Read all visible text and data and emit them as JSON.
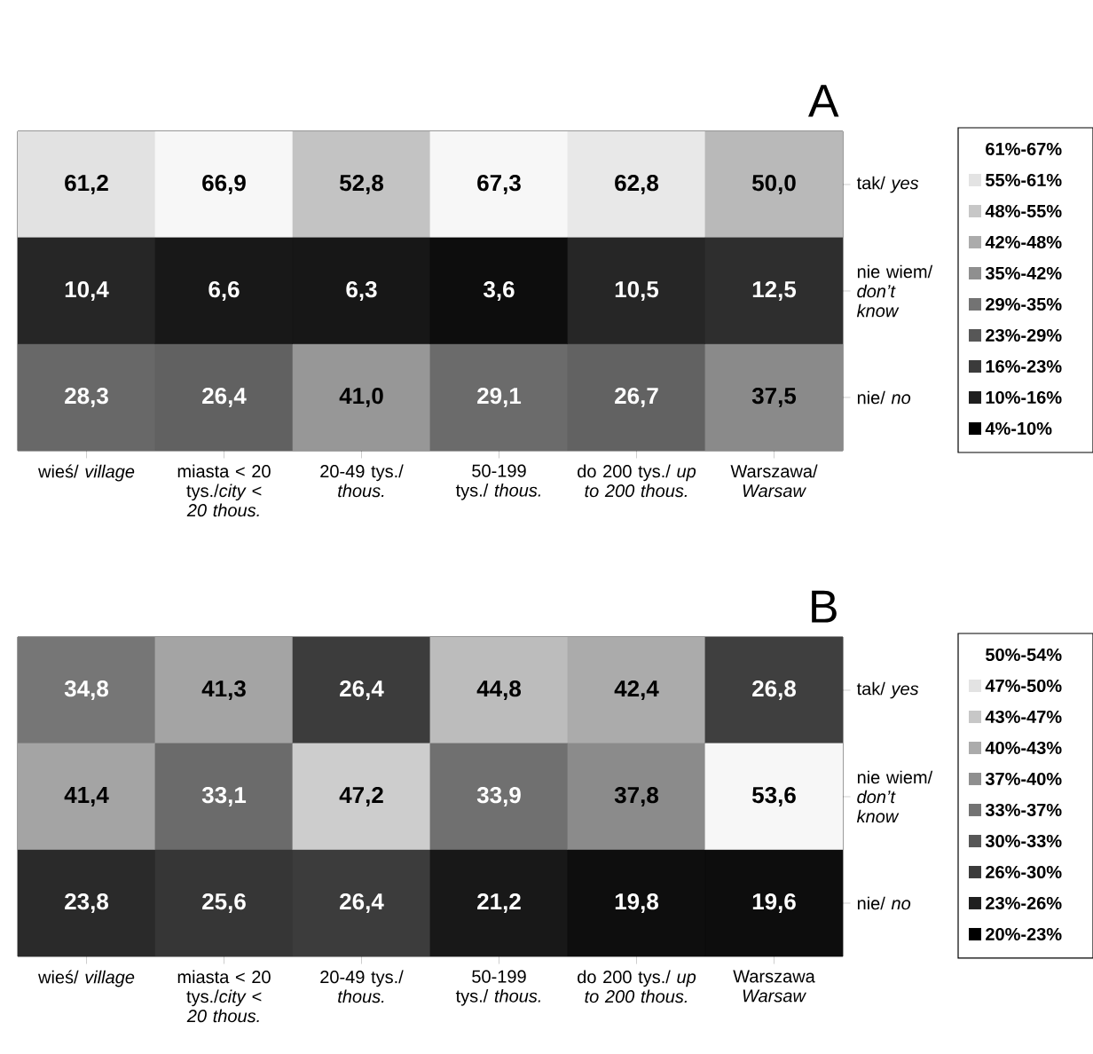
{
  "chart_data": [
    {
      "type": "heatmap",
      "title": "A",
      "categories": [
        "wieś/ *village*",
        "miasta < 20 tys./*city < 20 thous.*",
        "20-49 tys./ *thous.*",
        "50-199 tys./ *thous.*",
        "do 200 tys./ *up to 200 thous.*",
        "Warszawa/ *Warsaw*"
      ],
      "y_categories": [
        "tak/ *yes*",
        "nie wiem/ *don’t know*",
        "nie/ *no*"
      ],
      "cells": [
        [
          61.2,
          66.9,
          52.8,
          67.3,
          62.8,
          50.0
        ],
        [
          10.4,
          6.6,
          6.3,
          3.6,
          10.5,
          12.5
        ],
        [
          28.3,
          26.4,
          41.0,
          29.1,
          26.7,
          37.5
        ]
      ],
      "cell_labels": [
        [
          "61,2",
          "66,9",
          "52,8",
          "67,3",
          "62,8",
          "50,0"
        ],
        [
          "10,4",
          "6,6",
          "6,3",
          "3,6",
          "10,5",
          "12,5"
        ],
        [
          "28,3",
          "26,4",
          "41,0",
          "29,1",
          "26,7",
          "37,5"
        ]
      ],
      "annotations": [
        "61%-67%",
        "55%-61%",
        "48%-55%",
        "42%-48%",
        "35%-42%",
        "29%-35%",
        "23%-29%",
        "16%-23%",
        "10%-16%",
        "4%-10%"
      ]
    },
    {
      "type": "heatmap",
      "title": "B",
      "categories": [
        "wieś/ *village*",
        "miasta < 20 tys./*city < 20 thous.*",
        "20-49 tys./ *thous.*",
        "50-199 tys./ *thous.*",
        "do 200 tys./ *up to 200 thous.*",
        "Warszawa *Warsaw*"
      ],
      "y_categories": [
        "tak/ *yes*",
        "nie wiem/ *don’t know*",
        "nie/ *no*"
      ],
      "cells": [
        [
          34.8,
          41.3,
          26.4,
          44.8,
          42.4,
          26.8
        ],
        [
          41.4,
          33.1,
          47.2,
          33.9,
          37.8,
          53.6
        ],
        [
          23.8,
          25.6,
          26.4,
          21.2,
          19.8,
          19.6
        ]
      ],
      "cell_labels": [
        [
          "34,8",
          "41,3",
          "26,4",
          "44,8",
          "42,4",
          "26,8"
        ],
        [
          "41,4",
          "33,1",
          "47,2",
          "33,9",
          "37,8",
          "53,6"
        ],
        [
          "23,8",
          "25,6",
          "26,4",
          "21,2",
          "19,8",
          "19,6"
        ]
      ],
      "annotations": [
        "50%-54%",
        "47%-50%",
        "43%-47%",
        "40%-43%",
        "37%-40%",
        "33%-37%",
        "30%-33%",
        "26%-30%",
        "23%-26%",
        "20%-23%"
      ]
    }
  ]
}
